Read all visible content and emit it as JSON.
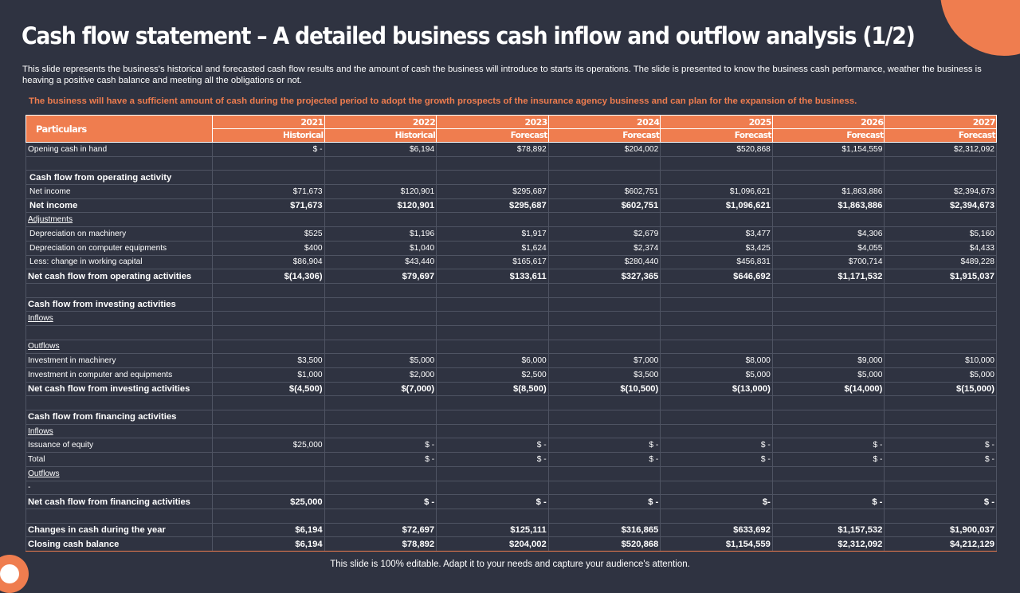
{
  "title": "Cash flow statement – A detailed business cash inflow and outflow analysis (1/2)",
  "description": "This slide represents the business's historical and forecasted cash flow results and the amount of cash the business will introduce to starts its operations. The slide is presented to know the business cash performance, weather the business is heaving a positive cash balance and meeting all the obligations or not.",
  "highlight": "The business will have a sufficient amount of cash during the projected period to adopt the growth prospects of the insurance agency business and can plan for the expansion of the business.",
  "table": {
    "particulars_label": "Particulars",
    "years": [
      "2021",
      "2022",
      "2023",
      "2024",
      "2025",
      "2026",
      "2027"
    ],
    "types": [
      "Historical",
      "Historical",
      "Forecast",
      "Forecast",
      "Forecast",
      "Forecast",
      "Forecast"
    ],
    "rows": [
      {
        "label": "Opening cash in hand",
        "values": [
          "$ -",
          "$6,194",
          "$78,892",
          "$204,002",
          "$520,868",
          "$1,154,559",
          "$2,312,092"
        ]
      },
      {
        "label": "",
        "values": [
          "",
          "",
          "",
          "",
          "",
          "",
          ""
        ]
      },
      {
        "label": "Cash flow from operating activity",
        "values": [
          "",
          "",
          "",
          "",
          "",
          "",
          ""
        ]
      },
      {
        "label": "Net income",
        "values": [
          "$71,673",
          "$120,901",
          "$295,687",
          "$602,751",
          "$1,096,621",
          "$1,863,886",
          "$2,394,673"
        ]
      },
      {
        "label": "Net income",
        "values": [
          "$71,673",
          "$120,901",
          "$295,687",
          "$602,751",
          "$1,096,621",
          "$1,863,886",
          "$2,394,673"
        ]
      },
      {
        "label": "Adjustments",
        "values": [
          "",
          "",
          "",
          "",
          "",
          "",
          ""
        ]
      },
      {
        "label": "Depreciation on machinery",
        "values": [
          "$525",
          "$1,196",
          "$1,917",
          "$2,679",
          "$3,477",
          "$4,306",
          "$5,160"
        ]
      },
      {
        "label": "Depreciation on computer equipments",
        "values": [
          "$400",
          "$1,040",
          "$1,624",
          "$2,374",
          "$3,425",
          "$4,055",
          "$4,433"
        ]
      },
      {
        "label": "Less: change in working capital",
        "values": [
          "$86,904",
          "$43,440",
          "$165,617",
          "$280,440",
          "$456,831",
          "$700,714",
          "$489,228"
        ]
      },
      {
        "label": "Net cash flow from operating activities",
        "values": [
          "$(14,306)",
          "$79,697",
          "$133,611",
          "$327,365",
          "$646,692",
          "$1,171,532",
          "$1,915,037"
        ]
      },
      {
        "label": "",
        "values": [
          "",
          "",
          "",
          "",
          "",
          "",
          ""
        ]
      },
      {
        "label": "Cash flow from investing activities",
        "values": [
          "",
          "",
          "",
          "",
          "",
          "",
          ""
        ]
      },
      {
        "label": "Inflows",
        "values": [
          "",
          "",
          "",
          "",
          "",
          "",
          ""
        ]
      },
      {
        "label": "",
        "values": [
          "",
          "",
          "",
          "",
          "",
          "",
          ""
        ]
      },
      {
        "label": "Outflows",
        "values": [
          "",
          "",
          "",
          "",
          "",
          "",
          ""
        ]
      },
      {
        "label": "Investment in machinery",
        "values": [
          "$3,500",
          "$5,000",
          "$6,000",
          "$7,000",
          "$8,000",
          "$9,000",
          "$10,000"
        ]
      },
      {
        "label": "Investment in computer and equipments",
        "values": [
          "$1,000",
          "$2,000",
          "$2,500",
          "$3,500",
          "$5,000",
          "$5,000",
          "$5,000"
        ]
      },
      {
        "label": "Net cash flow from investing activities",
        "values": [
          "$(4,500)",
          "$(7,000)",
          "$(8,500)",
          "$(10,500)",
          "$(13,000)",
          "$(14,000)",
          "$(15,000)"
        ]
      },
      {
        "label": "",
        "values": [
          "",
          "",
          "",
          "",
          "",
          "",
          ""
        ]
      },
      {
        "label": "Cash flow from financing activities",
        "values": [
          "",
          "",
          "",
          "",
          "",
          "",
          ""
        ]
      },
      {
        "label": "Inflows",
        "values": [
          "",
          "",
          "",
          "",
          "",
          "",
          ""
        ]
      },
      {
        "label": "Issuance of equity",
        "values": [
          "$25,000",
          "$ -",
          "$ -",
          "$ -",
          "$ -",
          "$ -",
          "$ -"
        ]
      },
      {
        "label": "Total",
        "values": [
          "",
          "$ -",
          "$ -",
          "$ -",
          "$ -",
          "$ -",
          "$ -"
        ]
      },
      {
        "label": "Outflows",
        "values": [
          "",
          "",
          "",
          "",
          "",
          "",
          ""
        ]
      },
      {
        "label": "-",
        "values": [
          "",
          "",
          "",
          "",
          "",
          "",
          ""
        ]
      },
      {
        "label": "Net cash flow from financing activities",
        "values": [
          "$25,000",
          "$ -",
          "$ -",
          "$ -",
          "$-",
          "$ -",
          "$ -"
        ]
      },
      {
        "label": "",
        "values": [
          "",
          "",
          "",
          "",
          "",
          "",
          ""
        ]
      },
      {
        "label": "Changes in cash during the year",
        "values": [
          "$6,194",
          "$72,697",
          "$125,111",
          "$316,865",
          "$633,692",
          "$1,157,532",
          "$1,900,037"
        ]
      },
      {
        "label": "Closing cash balance",
        "values": [
          "$6,194",
          "$78,892",
          "$204,002",
          "$520,868",
          "$1,154,559",
          "$2,312,092",
          "$4,212,129"
        ]
      }
    ]
  },
  "footer": "This slide is 100% editable. Adapt it to your needs and capture your audience's attention.",
  "colors": {
    "background": "#2f3341",
    "accent": "#ef7d4f",
    "grid": "#4f5463"
  }
}
